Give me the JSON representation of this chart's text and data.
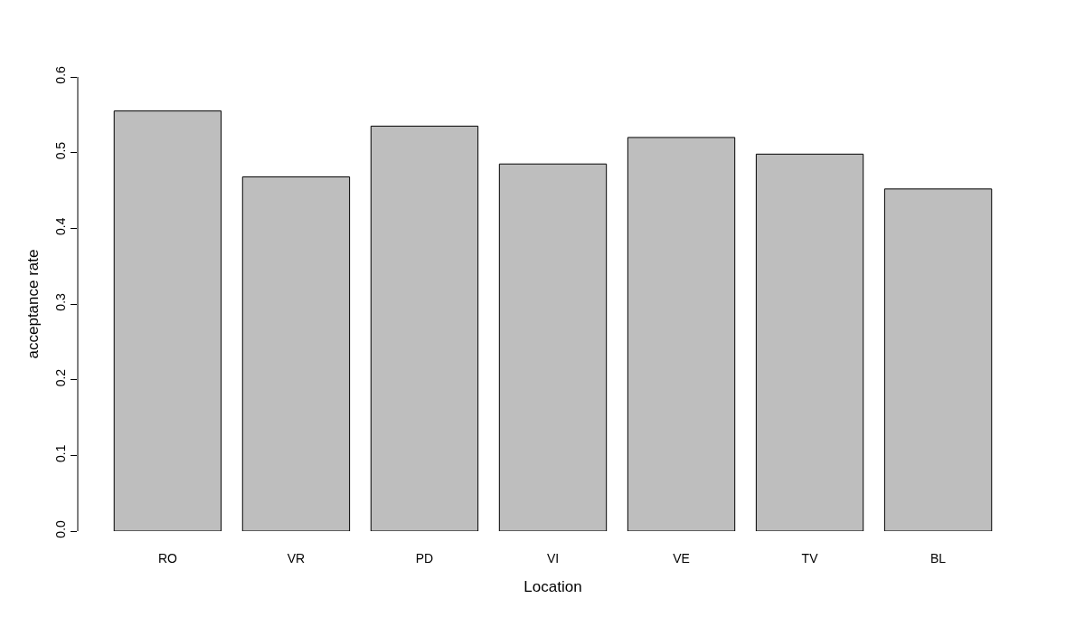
{
  "chart_data": {
    "type": "bar",
    "xlabel": "Location",
    "ylabel": "acceptance rate",
    "categories": [
      "RO",
      "VR",
      "PD",
      "VI",
      "VE",
      "TV",
      "BL"
    ],
    "values": [
      0.555,
      0.468,
      0.535,
      0.485,
      0.52,
      0.498,
      0.452
    ],
    "color": "#bebebe",
    "ylim": [
      0,
      0.6
    ],
    "yticks": [
      {
        "value": 0,
        "label": "0.0"
      },
      0.1,
      0.2,
      0.3,
      0.4,
      0.5,
      0.6
    ]
  }
}
